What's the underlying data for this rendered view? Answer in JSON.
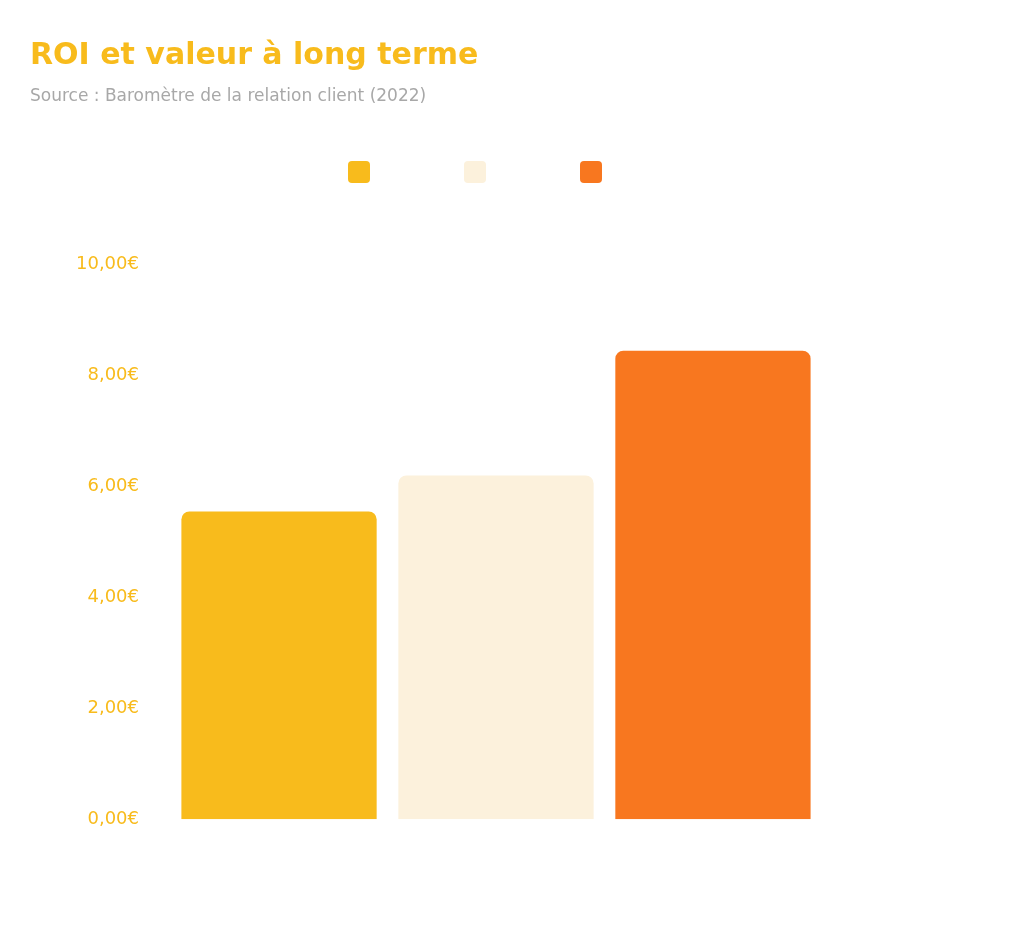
{
  "chart_data": {
    "type": "bar",
    "title": "ROI et valeur à long terme",
    "annotations": [
      "Source : Baromètre de la relation client (2022)"
    ],
    "categories": [
      null
    ],
    "series": [
      {
        "color": "#f8bb1c",
        "values": [
          5.55
        ]
      },
      {
        "color": "#fcf1dc",
        "values": [
          6.2
        ]
      },
      {
        "color": "#f8771f",
        "values": [
          8.45
        ]
      }
    ],
    "ylim": [
      0,
      10
    ],
    "yticks": [
      {
        "value": 0,
        "label": "0,00€"
      },
      {
        "value": 2,
        "label": "2,00€"
      },
      {
        "value": 4,
        "label": "4,00€"
      },
      {
        "value": 6,
        "label": "6,00€"
      },
      {
        "value": 8,
        "label": "8,00€"
      },
      {
        "value": 10,
        "label": "10,00€"
      }
    ],
    "grid": false
  }
}
